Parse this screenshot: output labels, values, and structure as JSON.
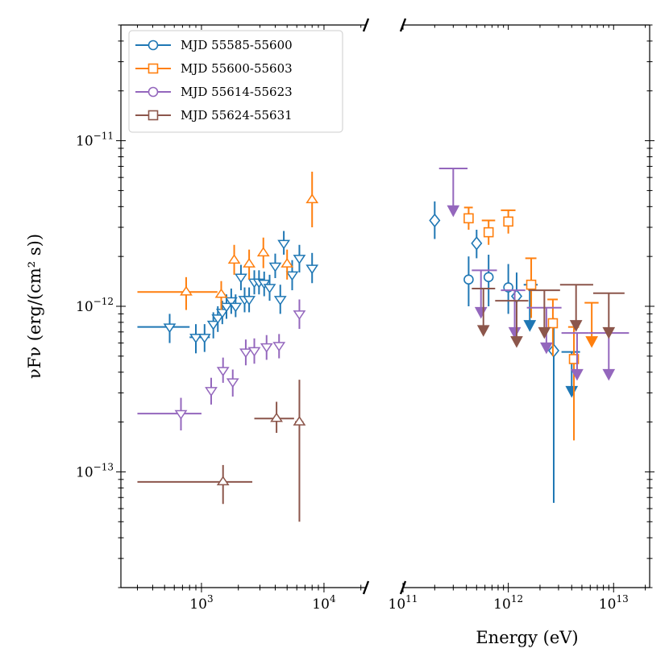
{
  "chart_data": {
    "type": "scatter",
    "title": "",
    "xlabel": "Energy (eV)",
    "ylabel": "νFν (erg/(cm² s))",
    "ylim": [
      2e-14,
      5e-11
    ],
    "x_scale": "log",
    "y_scale": "log",
    "grid": false,
    "legend_position": "top-left",
    "panels": [
      {
        "name": "xray",
        "xlim": [
          220,
          22000
        ],
        "ticks": [
          1000,
          10000
        ],
        "tick_labels": [
          {
            "b": "10",
            "e": "3"
          },
          {
            "b": "10",
            "e": "4"
          }
        ]
      },
      {
        "name": "gamma",
        "xlim": [
          100000000000.0,
          22000000000000.0
        ],
        "ticks": [
          100000000000.0,
          1000000000000.0,
          10000000000000.0
        ],
        "tick_labels": [
          {
            "b": "10",
            "e": "11"
          },
          {
            "b": "10",
            "e": "12"
          },
          {
            "b": "10",
            "e": "13"
          }
        ]
      }
    ],
    "y_tick_labels": [
      {
        "value": 1e-13,
        "b": "10",
        "e": "−13"
      },
      {
        "value": 1e-12,
        "b": "10",
        "e": "−12"
      },
      {
        "value": 1e-11,
        "b": "10",
        "e": "−11"
      }
    ],
    "series": [
      {
        "name": "MJD 55585-55600",
        "color": "#1f77b4",
        "legend_marker": "circle",
        "xray": {
          "marker": "tri-down",
          "points": [
            [
              550,
              7.5e-13,
              300,
              800,
              6e-13,
              9e-13
            ],
            [
              900,
              6.5e-13,
              800,
              1000,
              5.2e-13,
              7.8e-13
            ],
            [
              1060,
              6.5e-13,
              950,
              1170,
              5.3e-13,
              7.8e-13
            ],
            [
              1250,
              7.8e-13,
              1180,
              1320,
              6.4e-13,
              9.2e-13
            ],
            [
              1360,
              8.5e-13,
              1300,
              1420,
              7e-13,
              1e-12
            ],
            [
              1480,
              9.2e-13,
              1420,
              1540,
              7.8e-13,
              1.08e-12
            ],
            [
              1600,
              1e-12,
              1540,
              1660,
              8.4e-13,
              1.18e-12
            ],
            [
              1750,
              1.08e-12,
              1680,
              1820,
              9e-13,
              1.28e-12
            ],
            [
              1900,
              1e-12,
              1830,
              1980,
              8.6e-13,
              1.18e-12
            ],
            [
              2100,
              1.5e-12,
              2000,
              2200,
              1.25e-12,
              1.78e-12
            ],
            [
              2250,
              1.1e-12,
              2150,
              2350,
              9.2e-13,
              1.3e-12
            ],
            [
              2450,
              1.1e-12,
              2350,
              2550,
              9.2e-13,
              1.3e-12
            ],
            [
              2700,
              1.4e-12,
              2580,
              2820,
              1.18e-12,
              1.65e-12
            ],
            [
              2950,
              1.4e-12,
              2820,
              3080,
              1.18e-12,
              1.65e-12
            ],
            [
              3250,
              1.38e-12,
              3100,
              3400,
              1.15e-12,
              1.62e-12
            ],
            [
              3600,
              1.3e-12,
              3450,
              3750,
              1.08e-12,
              1.55e-12
            ],
            [
              4000,
              1.75e-12,
              3800,
              4200,
              1.48e-12,
              2.08e-12
            ],
            [
              4400,
              1.1e-12,
              4200,
              4600,
              9e-13,
              1.35e-12
            ],
            [
              4700,
              2.4e-12,
              4550,
              4850,
              2.05e-12,
              2.85e-12
            ],
            [
              5500,
              1.55e-12,
              5200,
              5800,
              1.25e-12,
              1.9e-12
            ],
            [
              6300,
              1.95e-12,
              6000,
              6600,
              1.6e-12,
              2.35e-12
            ],
            [
              8000,
              1.7e-12,
              7500,
              8500,
              1.38e-12,
              2.1e-12
            ]
          ]
        },
        "gamma": [
          {
            "x": 200000000000.0,
            "y": 3.3e-12,
            "xlo": 200000000000.0,
            "xhi": 200000000000.0,
            "ylo": 2.55e-12,
            "yhi": 4.3e-12,
            "marker": "diamond"
          },
          {
            "x": 420000000000.0,
            "y": 1.45e-12,
            "xlo": 420000000000.0,
            "xhi": 420000000000.0,
            "ylo": 1e-12,
            "yhi": 2e-12,
            "marker": "circle"
          },
          {
            "x": 500000000000.0,
            "y": 2.4e-12,
            "xlo": 500000000000.0,
            "xhi": 500000000000.0,
            "ylo": 1.95e-12,
            "yhi": 2.9e-12,
            "marker": "diamond"
          },
          {
            "x": 650000000000.0,
            "y": 1.5e-12,
            "xlo": 650000000000.0,
            "xhi": 650000000000.0,
            "ylo": 1e-12,
            "yhi": 2.05e-12,
            "marker": "circle"
          },
          {
            "x": 1000000000000.0,
            "y": 1.3e-12,
            "xlo": 1000000000000.0,
            "xhi": 1000000000000.0,
            "ylo": 9e-13,
            "yhi": 1.8e-12,
            "marker": "circle"
          },
          {
            "x": 1200000000000.0,
            "y": 1.15e-12,
            "xlo": 1200000000000.0,
            "xhi": 1200000000000.0,
            "ylo": 7e-13,
            "yhi": 1.6e-12,
            "marker": "diamond"
          },
          {
            "x": 1600000000000.0,
            "y": 7.5e-13,
            "xlo": 1400000000000.0,
            "xhi": 1900000000000.0,
            "ylo": 7.5e-13,
            "yhi": 1.35e-12,
            "marker": "ul"
          },
          {
            "x": 2700000000000.0,
            "y": 5.4e-13,
            "xlo": 2700000000000.0,
            "xhi": 2700000000000.0,
            "ylo": 6.5e-14,
            "yhi": 8.5e-13,
            "marker": "diamond"
          },
          {
            "x": 4000000000000.0,
            "y": 3e-13,
            "xlo": 3200000000000.0,
            "xhi": 4800000000000.0,
            "ylo": 3e-13,
            "yhi": 5.3e-13,
            "marker": "ul"
          }
        ]
      },
      {
        "name": "MJD 55600-55603",
        "color": "#ff7f0e",
        "legend_marker": "square",
        "xray": {
          "marker": "tri-up",
          "points": [
            [
              750,
              1.22e-12,
              300,
              1350,
              9.5e-13,
              1.5e-12
            ],
            [
              1450,
              1.18e-12,
              1350,
              1560,
              9.5e-13,
              1.42e-12
            ],
            [
              1850,
              1.9e-12,
              1750,
              1950,
              1.55e-12,
              2.35e-12
            ],
            [
              2450,
              1.8e-12,
              2300,
              2600,
              1.45e-12,
              2.2e-12
            ],
            [
              3200,
              2.1e-12,
              3000,
              3400,
              1.7e-12,
              2.6e-12
            ],
            [
              5000,
              1.8e-12,
              4700,
              5300,
              1.45e-12,
              2.2e-12
            ],
            [
              8000,
              4.4e-12,
              7500,
              8500,
              3e-12,
              6.5e-12
            ]
          ]
        },
        "gamma": [
          {
            "x": 420000000000.0,
            "y": 3.4e-12,
            "xlo": 380000000000.0,
            "xhi": 460000000000.0,
            "ylo": 2.9e-12,
            "yhi": 3.95e-12,
            "marker": "square"
          },
          {
            "x": 650000000000.0,
            "y": 2.8e-12,
            "xlo": 560000000000.0,
            "xhi": 750000000000.0,
            "ylo": 2.35e-12,
            "yhi": 3.3e-12,
            "marker": "square"
          },
          {
            "x": 1000000000000.0,
            "y": 3.25e-12,
            "xlo": 850000000000.0,
            "xhi": 1170000000000.0,
            "ylo": 2.75e-12,
            "yhi": 3.8e-12,
            "marker": "square"
          },
          {
            "x": 1650000000000.0,
            "y": 1.35e-12,
            "xlo": 1450000000000.0,
            "xhi": 1850000000000.0,
            "ylo": 8.5e-13,
            "yhi": 1.95e-12,
            "marker": "square"
          },
          {
            "x": 2650000000000.0,
            "y": 7.9e-13,
            "xlo": 2350000000000.0,
            "xhi": 2950000000000.0,
            "ylo": 5e-13,
            "yhi": 1.1e-12,
            "marker": "square"
          },
          {
            "x": 4200000000000.0,
            "y": 4.8e-13,
            "xlo": 3700000000000.0,
            "xhi": 4700000000000.0,
            "ylo": 1.55e-13,
            "yhi": 7.5e-13,
            "marker": "square"
          },
          {
            "x": 6200000000000.0,
            "y": 6e-13,
            "xlo": 5300000000000.0,
            "xhi": 7200000000000.0,
            "ylo": 6e-13,
            "yhi": 1.05e-12,
            "marker": "ul"
          }
        ]
      },
      {
        "name": "MJD 55614-55623",
        "color": "#9467bd",
        "legend_marker": "circle",
        "xray": {
          "marker": "tri-down",
          "points": [
            [
              680,
              2.25e-13,
              300,
              1000,
              1.78e-13,
              2.8e-13
            ],
            [
              1200,
              3.1e-13,
              1120,
              1280,
              2.55e-13,
              3.7e-13
            ],
            [
              1500,
              4.1e-13,
              1420,
              1580,
              3.45e-13,
              4.9e-13
            ],
            [
              1800,
              3.5e-13,
              1700,
              1900,
              2.85e-13,
              4.15e-13
            ],
            [
              2300,
              5.3e-13,
              2200,
              2400,
              4.4e-13,
              6.3e-13
            ],
            [
              2700,
              5.4e-13,
              2550,
              2850,
              4.5e-13,
              6.4e-13
            ],
            [
              3400,
              5.7e-13,
              3200,
              3600,
              4.75e-13,
              6.7e-13
            ],
            [
              4300,
              5.8e-13,
              4050,
              4550,
              4.85e-13,
              6.8e-13
            ],
            [
              6300,
              9e-13,
              6000,
              6600,
              7.3e-13,
              1.1e-12
            ]
          ]
        },
        "gamma": [
          {
            "x": 300000000000.0,
            "y": 3.7e-12,
            "xlo": 220000000000.0,
            "xhi": 410000000000.0,
            "ylo": 3.7e-12,
            "yhi": 6.8e-12,
            "marker": "ul"
          },
          {
            "x": 550000000000.0,
            "y": 9e-13,
            "xlo": 450000000000.0,
            "xhi": 780000000000.0,
            "ylo": 9e-13,
            "yhi": 1.65e-12,
            "marker": "ul"
          },
          {
            "x": 1150000000000.0,
            "y": 6.8e-13,
            "xlo": 850000000000.0,
            "xhi": 1450000000000.0,
            "ylo": 6.8e-13,
            "yhi": 1.25e-12,
            "marker": "ul"
          },
          {
            "x": 2300000000000.0,
            "y": 5.5e-13,
            "xlo": 1500000000000.0,
            "xhi": 3200000000000.0,
            "ylo": 5.5e-13,
            "yhi": 9.8e-13,
            "marker": "ul"
          },
          {
            "x": 4500000000000.0,
            "y": 3.8e-13,
            "xlo": 3200000000000.0,
            "xhi": 5800000000000.0,
            "ylo": 3.8e-13,
            "yhi": 6.9e-13,
            "marker": "ul"
          },
          {
            "x": 9000000000000.0,
            "y": 3.8e-13,
            "xlo": 5800000000000.0,
            "xhi": 14000000000000.0,
            "ylo": 3.8e-13,
            "yhi": 6.9e-13,
            "marker": "ul"
          }
        ]
      },
      {
        "name": "MJD 55624-55631",
        "color": "#8c564b",
        "legend_marker": "square",
        "xray": {
          "marker": "tri-up",
          "points": [
            [
              1500,
              8.7e-14,
              300,
              2600,
              6.4e-14,
              1.1e-13
            ],
            [
              4100,
              2.1e-13,
              2700,
              5700,
              1.72e-13,
              2.65e-13
            ],
            [
              6300,
              2e-13,
              5800,
              6800,
              5e-14,
              3.6e-13
            ]
          ]
        },
        "gamma": [
          {
            "x": 580000000000.0,
            "y": 7e-13,
            "xlo": 450000000000.0,
            "xhi": 750000000000.0,
            "ylo": 7e-13,
            "yhi": 1.28e-12,
            "marker": "ul"
          },
          {
            "x": 1200000000000.0,
            "y": 6e-13,
            "xlo": 750000000000.0,
            "xhi": 1550000000000.0,
            "ylo": 6e-13,
            "yhi": 1.08e-12,
            "marker": "ul"
          },
          {
            "x": 2200000000000.0,
            "y": 6.8e-13,
            "xlo": 1550000000000.0,
            "xhi": 3100000000000.0,
            "ylo": 6.8e-13,
            "yhi": 1.25e-12,
            "marker": "ul"
          },
          {
            "x": 4400000000000.0,
            "y": 7.5e-13,
            "xlo": 3100000000000.0,
            "xhi": 6400000000000.0,
            "ylo": 7.5e-13,
            "yhi": 1.35e-12,
            "marker": "ul"
          },
          {
            "x": 9000000000000.0,
            "y": 6.8e-13,
            "xlo": 6400000000000.0,
            "xhi": 12700000000000.0,
            "ylo": 6.8e-13,
            "yhi": 1.2e-12,
            "marker": "ul"
          }
        ]
      }
    ]
  }
}
